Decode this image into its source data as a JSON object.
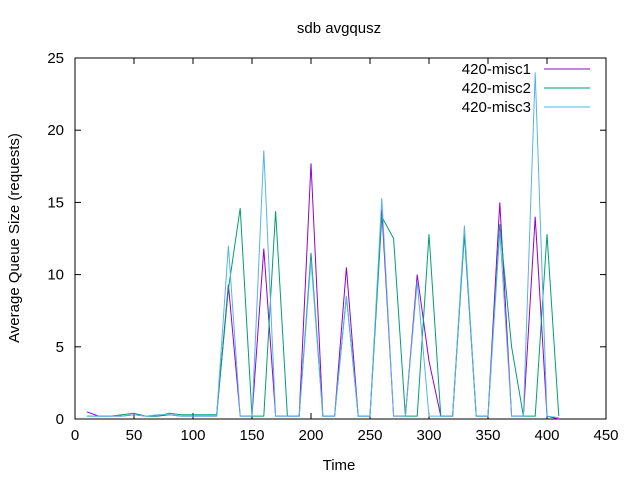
{
  "chart_data": {
    "type": "line",
    "title": "sdb avgqusz",
    "xlabel": "Time",
    "ylabel": "Average Queue Size (requests)",
    "xlim": [
      0,
      450
    ],
    "ylim": [
      0,
      25
    ],
    "xticks": [
      0,
      50,
      100,
      150,
      200,
      250,
      300,
      350,
      400,
      450
    ],
    "yticks": [
      0,
      5,
      10,
      15,
      20,
      25
    ],
    "grid": false,
    "legend_position": "top-right",
    "series": [
      {
        "name": "420-misc1",
        "color": "#9400d3",
        "x": [
          10,
          20,
          30,
          40,
          50,
          60,
          70,
          80,
          90,
          100,
          110,
          120,
          130,
          140,
          150,
          160,
          170,
          180,
          190,
          200,
          210,
          220,
          230,
          240,
          250,
          260,
          270,
          280,
          290,
          300,
          310,
          320,
          330,
          340,
          350,
          360,
          370,
          380,
          390,
          400,
          410
        ],
        "y": [
          0.5,
          0.2,
          0.2,
          0.2,
          0.3,
          0.2,
          0.2,
          0.3,
          0.2,
          0.2,
          0.2,
          0.2,
          9.3,
          0.2,
          0.2,
          11.8,
          0.2,
          0.2,
          0.2,
          17.7,
          0.2,
          0.2,
          10.5,
          0.2,
          0.2,
          14.5,
          0.2,
          0.2,
          10.0,
          4.0,
          0.2,
          0.2,
          13.0,
          0.2,
          0.2,
          15.0,
          0.2,
          0.2,
          14.0,
          0.2,
          0.0
        ]
      },
      {
        "name": "420-misc2",
        "color": "#009e73",
        "x": [
          10,
          20,
          30,
          40,
          50,
          60,
          70,
          80,
          90,
          100,
          110,
          120,
          130,
          140,
          150,
          160,
          170,
          180,
          190,
          200,
          210,
          220,
          230,
          240,
          250,
          260,
          270,
          280,
          290,
          300,
          310,
          320,
          330,
          340,
          350,
          360,
          370,
          380,
          390,
          400,
          410
        ],
        "y": [
          0.2,
          0.2,
          0.2,
          0.3,
          0.4,
          0.2,
          0.2,
          0.4,
          0.3,
          0.3,
          0.3,
          0.3,
          9.0,
          14.6,
          0.2,
          0.2,
          14.4,
          0.2,
          0.2,
          11.5,
          0.2,
          0.2,
          8.5,
          0.2,
          0.2,
          14.0,
          12.5,
          0.2,
          0.2,
          12.8,
          0.2,
          0.2,
          12.8,
          0.2,
          0.2,
          13.5,
          5.0,
          0.2,
          0.2,
          12.8,
          0.2
        ]
      },
      {
        "name": "420-misc3",
        "color": "#56b4e9",
        "x": [
          10,
          20,
          30,
          40,
          50,
          60,
          70,
          80,
          90,
          100,
          110,
          120,
          130,
          140,
          150,
          160,
          170,
          180,
          190,
          200,
          210,
          220,
          230,
          240,
          250,
          260,
          270,
          280,
          290,
          300,
          310,
          320,
          330,
          340,
          350,
          360,
          370,
          380,
          390,
          400,
          410
        ],
        "y": [
          0.2,
          0.2,
          0.2,
          0.2,
          0.3,
          0.2,
          0.3,
          0.3,
          0.2,
          0.2,
          0.2,
          0.2,
          12.0,
          0.2,
          0.2,
          18.6,
          0.2,
          0.2,
          0.2,
          11.0,
          0.2,
          0.2,
          8.5,
          0.2,
          0.2,
          15.3,
          0.2,
          0.2,
          9.5,
          0.2,
          0.2,
          0.2,
          13.4,
          0.2,
          0.2,
          13.0,
          0.2,
          0.2,
          24.0,
          0.2,
          0.1
        ]
      }
    ]
  }
}
